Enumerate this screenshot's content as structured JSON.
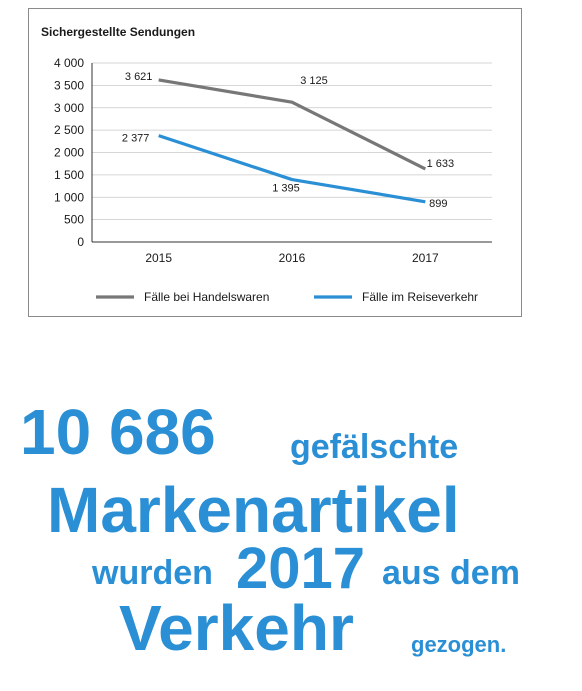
{
  "chart_data": {
    "type": "line",
    "title": "Sichergestellte Sendungen",
    "categories": [
      "2015",
      "2016",
      "2017"
    ],
    "ylim": [
      0,
      4000
    ],
    "yticks": [
      0,
      500,
      1000,
      1500,
      2000,
      2500,
      3000,
      3500,
      4000
    ],
    "ytick_labels": [
      "0",
      "500",
      "1 000",
      "1 500",
      "2 000",
      "2 500",
      "3 000",
      "3 500",
      "4 000"
    ],
    "grid": true,
    "legend_position": "bottom",
    "series": [
      {
        "name": "Fälle bei Handelswaren",
        "color": "#777777",
        "values": [
          3621,
          3125,
          1633
        ],
        "labels": [
          "3 621",
          "3 125",
          "1 633"
        ]
      },
      {
        "name": "Fälle im Reiseverkehr",
        "color": "#2a8fd4",
        "values": [
          2377,
          1395,
          899
        ],
        "labels": [
          "2 377",
          "1 395",
          "899"
        ]
      }
    ]
  },
  "headline": {
    "line1_number": "10 686",
    "line1_text": "gefälschte",
    "line2": "Markenartikel",
    "line3_pre": "wurden",
    "line3_year": "2017",
    "line3_post": "aus dem",
    "line4_main": "Verkehr",
    "line4_post": "gezogen."
  },
  "colors": {
    "accent": "#2a8fd4",
    "grey_series": "#777777"
  }
}
